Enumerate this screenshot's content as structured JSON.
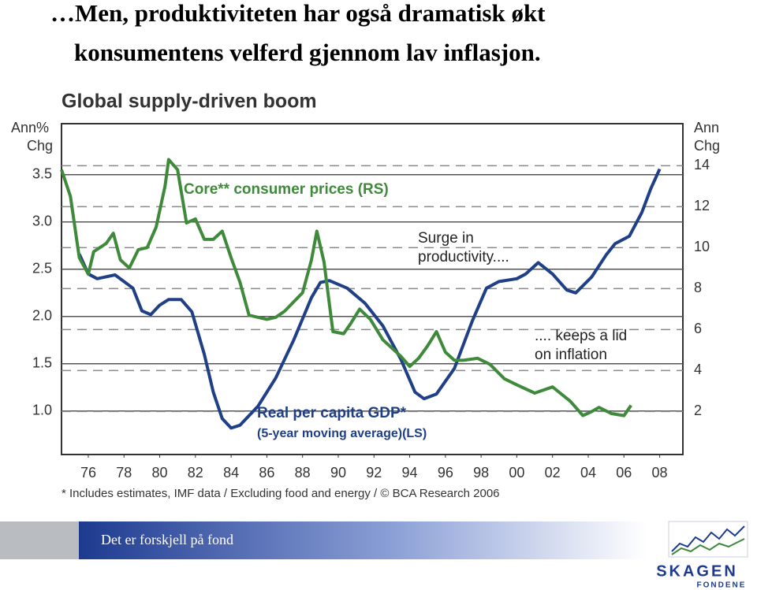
{
  "slide": {
    "title": [
      "…Men, produktiviteten har også dramatisk økt",
      "konsumentens velferd gjennom lav inflasjon."
    ],
    "footer": "Det er forskjell på fond",
    "logo": [
      "SKAGEN",
      "FONDENE"
    ]
  },
  "chart_data": {
    "type": "line",
    "title": "Global supply-driven boom",
    "y_label": [
      "Ann%",
      "Chg"
    ],
    "y2_label": [
      "Ann",
      "Chg"
    ],
    "xlim": [
      1974.5,
      2009.3
    ],
    "xticks": [
      {
        "value": 1976,
        "label": "76"
      },
      {
        "value": 1978,
        "label": "78"
      },
      {
        "value": 1980,
        "label": "80"
      },
      {
        "value": 1982,
        "label": "82"
      },
      {
        "value": 1984,
        "label": "84"
      },
      {
        "value": 1986,
        "label": "86"
      },
      {
        "value": 1988,
        "label": "88"
      },
      {
        "value": 1990,
        "label": "90"
      },
      {
        "value": 1992,
        "label": "92"
      },
      {
        "value": 1994,
        "label": "94"
      },
      {
        "value": 1996,
        "label": "96"
      },
      {
        "value": 1998,
        "label": "98"
      },
      {
        "value": 2000,
        "label": "00"
      },
      {
        "value": 2002,
        "label": "02"
      },
      {
        "value": 2004,
        "label": "04"
      },
      {
        "value": 2006,
        "label": "06"
      },
      {
        "value": 2008,
        "label": "08"
      }
    ],
    "ylim": [
      0.54,
      4.04
    ],
    "yticks": [
      {
        "value": 1,
        "label": "1.0"
      },
      1.5,
      {
        "value": 2,
        "label": "2.0"
      },
      2.5,
      {
        "value": 3,
        "label": "3.0"
      },
      3.5
    ],
    "y2lim": [
      -0.1,
      16.05
    ],
    "y2ticks": [
      2,
      4,
      6,
      8,
      10,
      12,
      14
    ],
    "grid": true,
    "series": [
      {
        "name": "Real per capita GDP*",
        "note": "(5-year moving average)(LS)",
        "color": "#1f3f87",
        "axis": "y",
        "x": [
          1975.5,
          1976,
          1976.5,
          1977.5,
          1978.5,
          1979,
          1979.5,
          1980,
          1980.5,
          1981.2,
          1981.8,
          1982.5,
          1983,
          1983.5,
          1984,
          1984.5,
          1985.5,
          1986.5,
          1987.5,
          1988.5,
          1989,
          1989.5,
          1990.5,
          1991.5,
          1992.5,
          1993.5,
          1994.3,
          1994.8,
          1995.5,
          1996.5,
          1997.5,
          1998.3,
          1999,
          2000,
          2000.5,
          2001.2,
          2002,
          2002.8,
          2003.3,
          2004.2,
          2005,
          2005.5,
          2006.3,
          2007,
          2007.5,
          2008
        ],
        "values": [
          2.66,
          2.45,
          2.4,
          2.44,
          2.3,
          2.06,
          2.02,
          2.12,
          2.18,
          2.18,
          2.05,
          1.6,
          1.2,
          0.92,
          0.82,
          0.85,
          1.05,
          1.35,
          1.75,
          2.2,
          2.36,
          2.38,
          2.3,
          2.14,
          1.9,
          1.55,
          1.2,
          1.13,
          1.18,
          1.45,
          1.95,
          2.3,
          2.37,
          2.4,
          2.45,
          2.57,
          2.45,
          2.28,
          2.25,
          2.42,
          2.65,
          2.77,
          2.85,
          3.1,
          3.35,
          3.56
        ]
      },
      {
        "name": "Core** consumer prices (RS)",
        "color": "#3f8a3a",
        "axis": "y2",
        "x": [
          1974.5,
          1975,
          1975.5,
          1976,
          1976.3,
          1977,
          1977.4,
          1977.8,
          1978.3,
          1978.8,
          1979.3,
          1979.8,
          1980.3,
          1980.5,
          1981,
          1981.5,
          1982,
          1982.5,
          1983,
          1983.5,
          1984,
          1984.5,
          1985,
          1986,
          1986.5,
          1987,
          1988,
          1988.5,
          1988.8,
          1989.2,
          1989.7,
          1990.3,
          1990.7,
          1991.2,
          1991.8,
          1992.5,
          1993.5,
          1994,
          1994.5,
          1995,
          1995.5,
          1996,
          1996.5,
          1997,
          1997.8,
          1998.5,
          1999.3,
          2000,
          2001,
          2002,
          2003,
          2003.7,
          2004.2,
          2004.6,
          2005.3,
          2006,
          2006.4
        ],
        "values": [
          13.8,
          12.5,
          9.5,
          8.7,
          9.8,
          10.2,
          10.7,
          9.4,
          9.0,
          9.9,
          10.0,
          11,
          13.0,
          14.3,
          13.8,
          11.2,
          11.4,
          10.4,
          10.4,
          10.8,
          9.5,
          8.3,
          6.7,
          6.5,
          6.6,
          6.9,
          7.8,
          9.4,
          10.8,
          9.3,
          5.9,
          5.8,
          6.3,
          7.0,
          6.5,
          5.5,
          4.7,
          4.2,
          4.6,
          5.2,
          5.9,
          4.9,
          4.5,
          4.5,
          4.6,
          4.3,
          3.6,
          3.3,
          2.9,
          3.2,
          2.5,
          1.8,
          2.0,
          2.2,
          1.9,
          1.8,
          2.3
        ]
      }
    ],
    "annotations": [
      [
        "Surge in",
        "productivity...."
      ],
      [
        ".... keeps a lid",
        "on inflation"
      ]
    ],
    "footnote": "* Includes estimates, IMF data / Excluding food and energy / © BCA Research 2006"
  }
}
